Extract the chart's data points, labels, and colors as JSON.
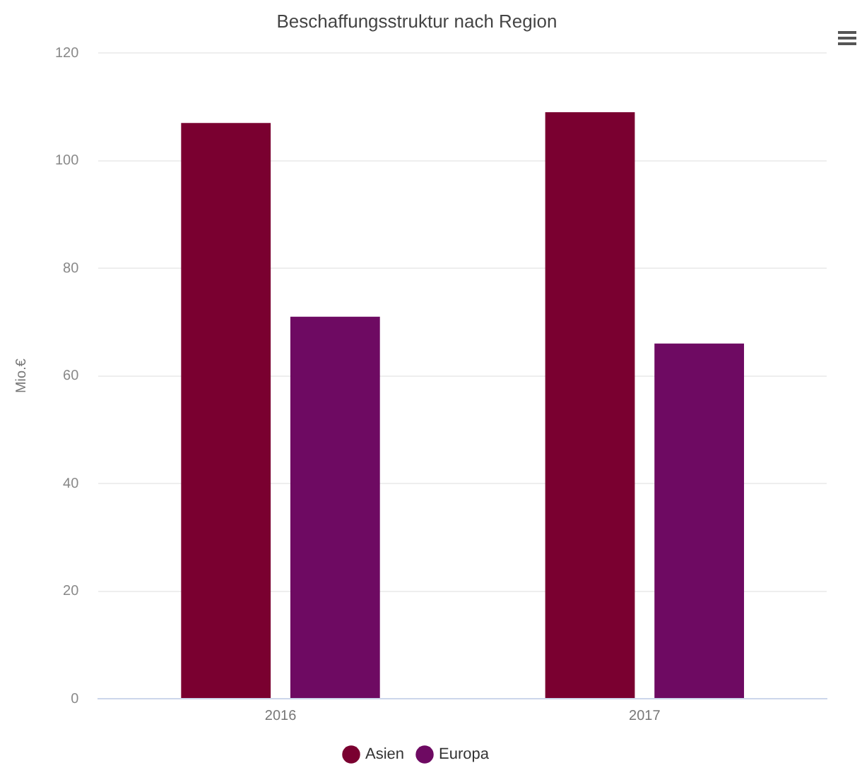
{
  "chart_data": {
    "type": "bar",
    "title": "Beschaffungsstruktur nach Region",
    "ylabel": "Mio.€",
    "categories": [
      "2016",
      "2017"
    ],
    "series": [
      {
        "name": "Asien",
        "color": "#7a0030",
        "values": [
          107,
          109
        ]
      },
      {
        "name": "Europa",
        "color": "#6e0a62",
        "values": [
          71,
          66
        ]
      }
    ],
    "ylim": [
      0,
      120
    ],
    "yticks": [
      0,
      20,
      40,
      60,
      80,
      100,
      120
    ],
    "grid": "y",
    "legend": "bottom"
  }
}
